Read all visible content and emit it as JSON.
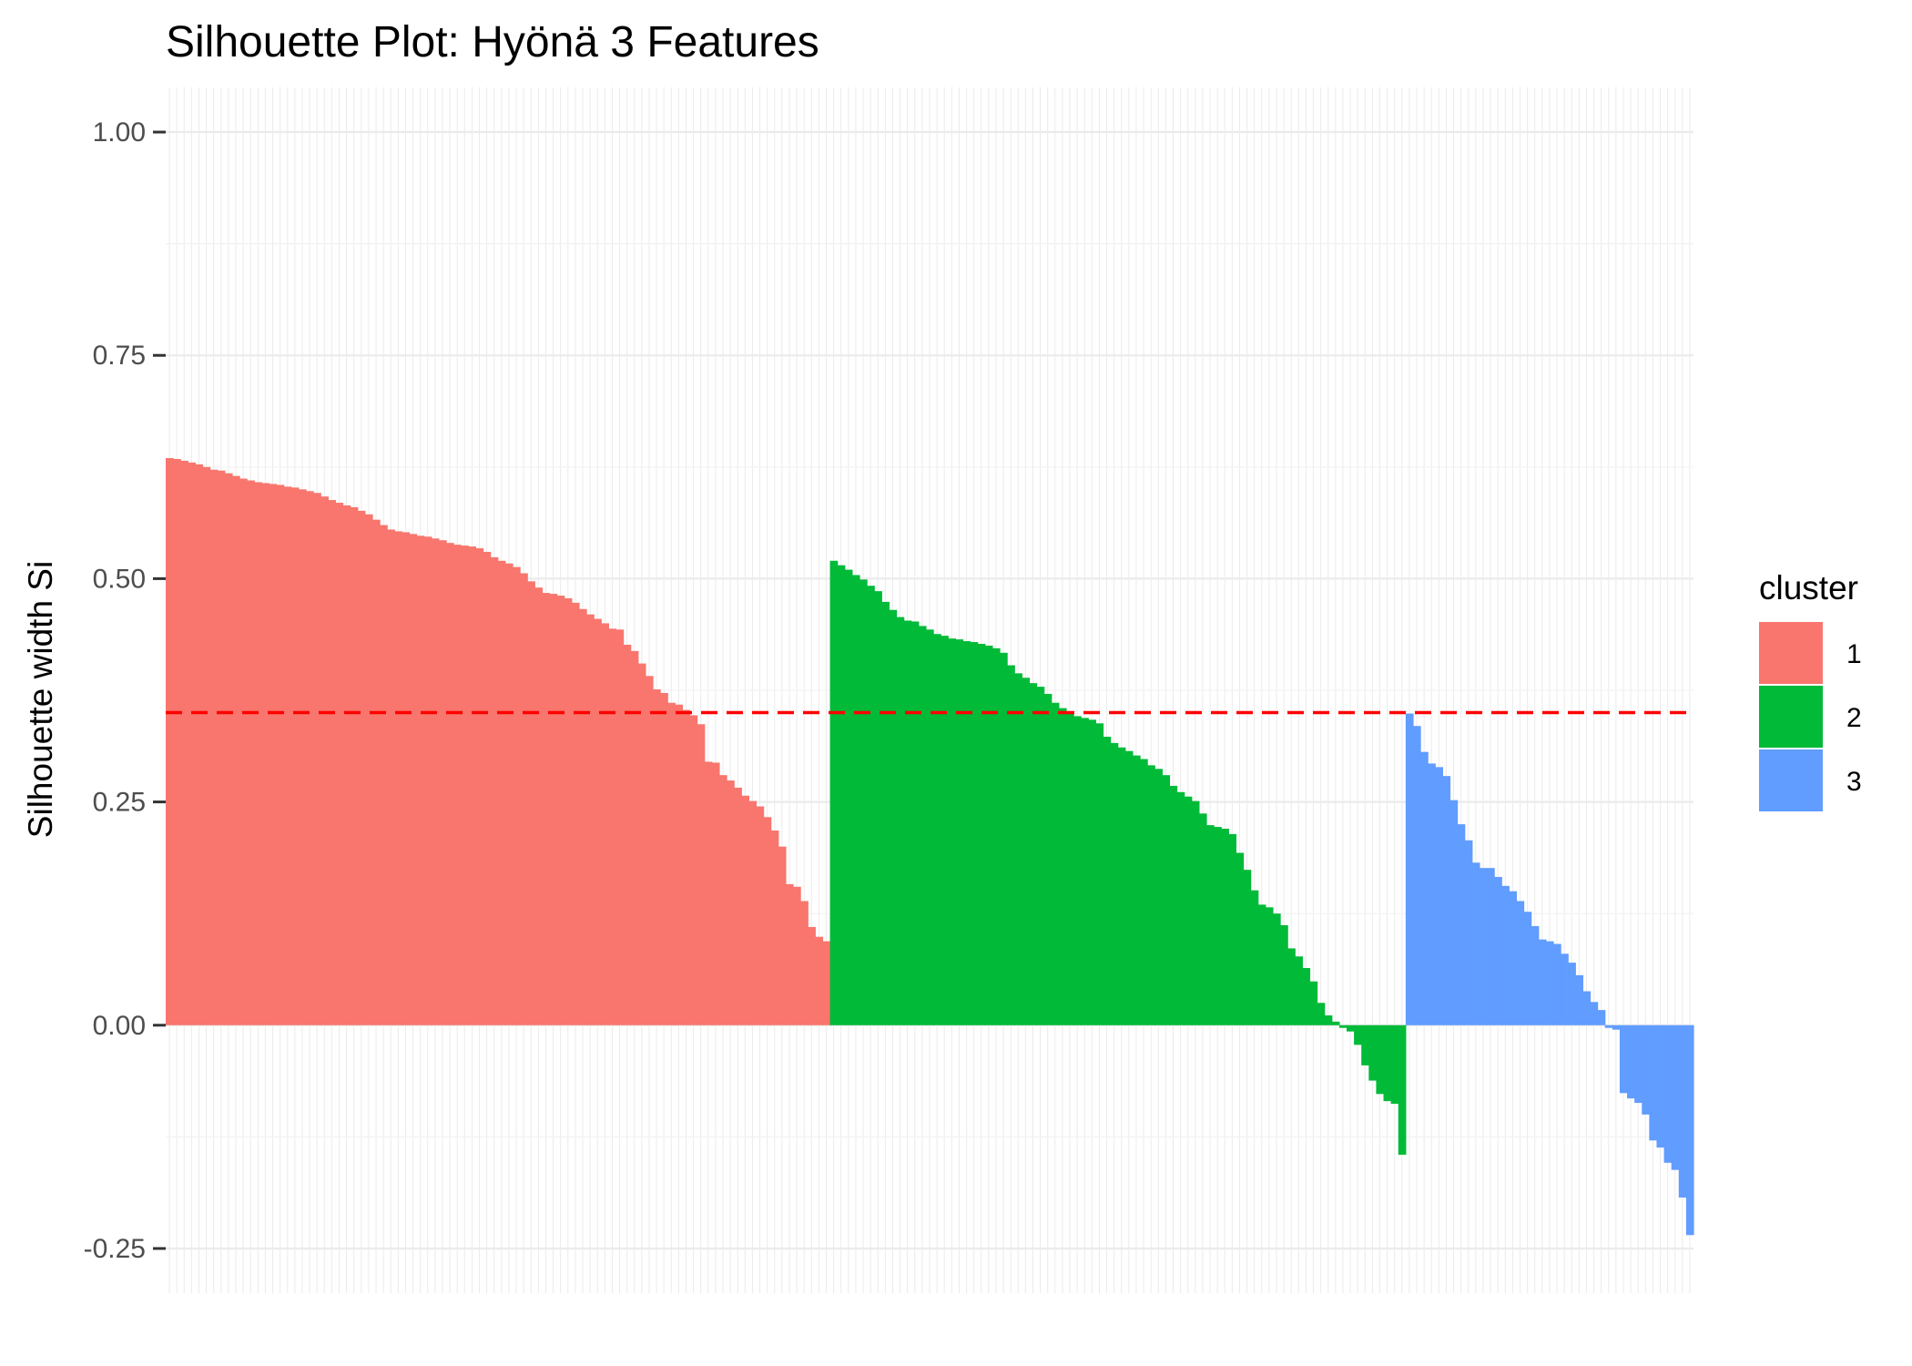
{
  "chart_data": {
    "type": "bar",
    "title": "Silhouette Plot: Hyönä 3 Features",
    "xlabel": "",
    "ylabel": "Silhouette width Si",
    "ylim": [
      -0.3,
      1.05
    ],
    "yticks": [
      {
        "value": -0.25,
        "label": "-0.25"
      },
      {
        "value": 0.0,
        "label": "0.00"
      },
      {
        "value": 0.25,
        "label": "0.25"
      },
      {
        "value": 0.5,
        "label": "0.50"
      },
      {
        "value": 0.75,
        "label": "0.75"
      },
      {
        "value": 1.0,
        "label": "1.00"
      }
    ],
    "grid": true,
    "legend_position": "right",
    "legend_title": "cluster",
    "average_silhouette": 0.35,
    "average_line_color": "#ff0000",
    "series": [
      {
        "name": "1",
        "color": "#F8766D",
        "values": [
          0.635,
          0.634,
          0.632,
          0.63,
          0.628,
          0.625,
          0.622,
          0.621,
          0.618,
          0.615,
          0.612,
          0.61,
          0.608,
          0.607,
          0.606,
          0.605,
          0.603,
          0.602,
          0.6,
          0.598,
          0.596,
          0.592,
          0.588,
          0.585,
          0.582,
          0.58,
          0.576,
          0.572,
          0.566,
          0.56,
          0.555,
          0.553,
          0.552,
          0.55,
          0.548,
          0.547,
          0.545,
          0.543,
          0.54,
          0.538,
          0.537,
          0.536,
          0.534,
          0.53,
          0.524,
          0.52,
          0.517,
          0.513,
          0.506,
          0.497,
          0.49,
          0.484,
          0.483,
          0.481,
          0.478,
          0.473,
          0.466,
          0.46,
          0.455,
          0.45,
          0.444,
          0.443,
          0.426,
          0.419,
          0.405,
          0.391,
          0.376,
          0.372,
          0.361,
          0.359,
          0.353,
          0.347,
          0.337,
          0.295,
          0.294,
          0.28,
          0.274,
          0.266,
          0.257,
          0.251,
          0.245,
          0.233,
          0.218,
          0.2,
          0.158,
          0.155,
          0.139,
          0.11,
          0.099,
          0.094
        ]
      },
      {
        "name": "2",
        "color": "#00BA38",
        "values": [
          0.52,
          0.515,
          0.51,
          0.504,
          0.499,
          0.492,
          0.486,
          0.474,
          0.465,
          0.457,
          0.453,
          0.452,
          0.447,
          0.443,
          0.438,
          0.436,
          0.433,
          0.432,
          0.43,
          0.429,
          0.427,
          0.425,
          0.422,
          0.417,
          0.403,
          0.394,
          0.389,
          0.383,
          0.379,
          0.371,
          0.361,
          0.355,
          0.349,
          0.346,
          0.344,
          0.342,
          0.338,
          0.323,
          0.316,
          0.311,
          0.307,
          0.302,
          0.298,
          0.291,
          0.287,
          0.28,
          0.268,
          0.261,
          0.256,
          0.251,
          0.237,
          0.224,
          0.222,
          0.22,
          0.214,
          0.193,
          0.174,
          0.151,
          0.135,
          0.132,
          0.125,
          0.112,
          0.086,
          0.077,
          0.064,
          0.049,
          0.025,
          0.011,
          0.004,
          -0.003,
          -0.007,
          -0.022,
          -0.045,
          -0.062,
          -0.077,
          -0.085,
          -0.088,
          -0.145
        ]
      },
      {
        "name": "3",
        "color": "#619CFF",
        "values": [
          0.349,
          0.335,
          0.306,
          0.293,
          0.289,
          0.279,
          0.252,
          0.225,
          0.207,
          0.182,
          0.176,
          0.176,
          0.166,
          0.156,
          0.15,
          0.139,
          0.127,
          0.111,
          0.096,
          0.094,
          0.091,
          0.08,
          0.07,
          0.056,
          0.038,
          0.026,
          0.017,
          -0.003,
          -0.005,
          -0.076,
          -0.082,
          -0.087,
          -0.1,
          -0.129,
          -0.137,
          -0.154,
          -0.162,
          -0.193,
          -0.235
        ]
      }
    ]
  }
}
